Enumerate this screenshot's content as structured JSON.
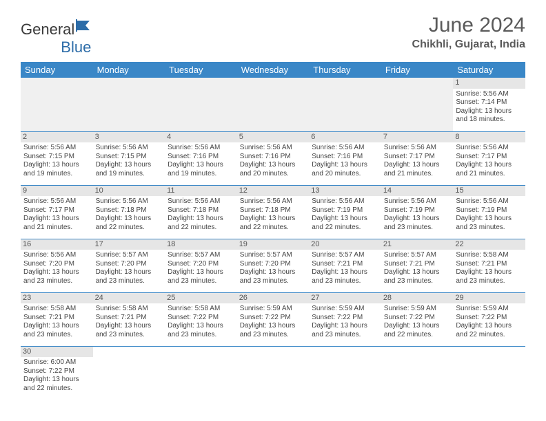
{
  "logo": {
    "text1": "General",
    "text2": "Blue"
  },
  "title": "June 2024",
  "location": "Chikhli, Gujarat, India",
  "colors": {
    "header_bg": "#3a87c7",
    "header_text": "#ffffff",
    "daynum_bg": "#e6e6e6",
    "empty_bg": "#f0f0f0",
    "border": "#3a87c7",
    "title_color": "#5a5a5a"
  },
  "day_headers": [
    "Sunday",
    "Monday",
    "Tuesday",
    "Wednesday",
    "Thursday",
    "Friday",
    "Saturday"
  ],
  "weeks": [
    [
      null,
      null,
      null,
      null,
      null,
      null,
      {
        "n": "1",
        "sr": "Sunrise: 5:56 AM",
        "ss": "Sunset: 7:14 PM",
        "d1": "Daylight: 13 hours",
        "d2": "and 18 minutes."
      }
    ],
    [
      {
        "n": "2",
        "sr": "Sunrise: 5:56 AM",
        "ss": "Sunset: 7:15 PM",
        "d1": "Daylight: 13 hours",
        "d2": "and 19 minutes."
      },
      {
        "n": "3",
        "sr": "Sunrise: 5:56 AM",
        "ss": "Sunset: 7:15 PM",
        "d1": "Daylight: 13 hours",
        "d2": "and 19 minutes."
      },
      {
        "n": "4",
        "sr": "Sunrise: 5:56 AM",
        "ss": "Sunset: 7:16 PM",
        "d1": "Daylight: 13 hours",
        "d2": "and 19 minutes."
      },
      {
        "n": "5",
        "sr": "Sunrise: 5:56 AM",
        "ss": "Sunset: 7:16 PM",
        "d1": "Daylight: 13 hours",
        "d2": "and 20 minutes."
      },
      {
        "n": "6",
        "sr": "Sunrise: 5:56 AM",
        "ss": "Sunset: 7:16 PM",
        "d1": "Daylight: 13 hours",
        "d2": "and 20 minutes."
      },
      {
        "n": "7",
        "sr": "Sunrise: 5:56 AM",
        "ss": "Sunset: 7:17 PM",
        "d1": "Daylight: 13 hours",
        "d2": "and 21 minutes."
      },
      {
        "n": "8",
        "sr": "Sunrise: 5:56 AM",
        "ss": "Sunset: 7:17 PM",
        "d1": "Daylight: 13 hours",
        "d2": "and 21 minutes."
      }
    ],
    [
      {
        "n": "9",
        "sr": "Sunrise: 5:56 AM",
        "ss": "Sunset: 7:17 PM",
        "d1": "Daylight: 13 hours",
        "d2": "and 21 minutes."
      },
      {
        "n": "10",
        "sr": "Sunrise: 5:56 AM",
        "ss": "Sunset: 7:18 PM",
        "d1": "Daylight: 13 hours",
        "d2": "and 22 minutes."
      },
      {
        "n": "11",
        "sr": "Sunrise: 5:56 AM",
        "ss": "Sunset: 7:18 PM",
        "d1": "Daylight: 13 hours",
        "d2": "and 22 minutes."
      },
      {
        "n": "12",
        "sr": "Sunrise: 5:56 AM",
        "ss": "Sunset: 7:18 PM",
        "d1": "Daylight: 13 hours",
        "d2": "and 22 minutes."
      },
      {
        "n": "13",
        "sr": "Sunrise: 5:56 AM",
        "ss": "Sunset: 7:19 PM",
        "d1": "Daylight: 13 hours",
        "d2": "and 22 minutes."
      },
      {
        "n": "14",
        "sr": "Sunrise: 5:56 AM",
        "ss": "Sunset: 7:19 PM",
        "d1": "Daylight: 13 hours",
        "d2": "and 23 minutes."
      },
      {
        "n": "15",
        "sr": "Sunrise: 5:56 AM",
        "ss": "Sunset: 7:19 PM",
        "d1": "Daylight: 13 hours",
        "d2": "and 23 minutes."
      }
    ],
    [
      {
        "n": "16",
        "sr": "Sunrise: 5:56 AM",
        "ss": "Sunset: 7:20 PM",
        "d1": "Daylight: 13 hours",
        "d2": "and 23 minutes."
      },
      {
        "n": "17",
        "sr": "Sunrise: 5:57 AM",
        "ss": "Sunset: 7:20 PM",
        "d1": "Daylight: 13 hours",
        "d2": "and 23 minutes."
      },
      {
        "n": "18",
        "sr": "Sunrise: 5:57 AM",
        "ss": "Sunset: 7:20 PM",
        "d1": "Daylight: 13 hours",
        "d2": "and 23 minutes."
      },
      {
        "n": "19",
        "sr": "Sunrise: 5:57 AM",
        "ss": "Sunset: 7:20 PM",
        "d1": "Daylight: 13 hours",
        "d2": "and 23 minutes."
      },
      {
        "n": "20",
        "sr": "Sunrise: 5:57 AM",
        "ss": "Sunset: 7:21 PM",
        "d1": "Daylight: 13 hours",
        "d2": "and 23 minutes."
      },
      {
        "n": "21",
        "sr": "Sunrise: 5:57 AM",
        "ss": "Sunset: 7:21 PM",
        "d1": "Daylight: 13 hours",
        "d2": "and 23 minutes."
      },
      {
        "n": "22",
        "sr": "Sunrise: 5:58 AM",
        "ss": "Sunset: 7:21 PM",
        "d1": "Daylight: 13 hours",
        "d2": "and 23 minutes."
      }
    ],
    [
      {
        "n": "23",
        "sr": "Sunrise: 5:58 AM",
        "ss": "Sunset: 7:21 PM",
        "d1": "Daylight: 13 hours",
        "d2": "and 23 minutes."
      },
      {
        "n": "24",
        "sr": "Sunrise: 5:58 AM",
        "ss": "Sunset: 7:21 PM",
        "d1": "Daylight: 13 hours",
        "d2": "and 23 minutes."
      },
      {
        "n": "25",
        "sr": "Sunrise: 5:58 AM",
        "ss": "Sunset: 7:22 PM",
        "d1": "Daylight: 13 hours",
        "d2": "and 23 minutes."
      },
      {
        "n": "26",
        "sr": "Sunrise: 5:59 AM",
        "ss": "Sunset: 7:22 PM",
        "d1": "Daylight: 13 hours",
        "d2": "and 23 minutes."
      },
      {
        "n": "27",
        "sr": "Sunrise: 5:59 AM",
        "ss": "Sunset: 7:22 PM",
        "d1": "Daylight: 13 hours",
        "d2": "and 23 minutes."
      },
      {
        "n": "28",
        "sr": "Sunrise: 5:59 AM",
        "ss": "Sunset: 7:22 PM",
        "d1": "Daylight: 13 hours",
        "d2": "and 22 minutes."
      },
      {
        "n": "29",
        "sr": "Sunrise: 5:59 AM",
        "ss": "Sunset: 7:22 PM",
        "d1": "Daylight: 13 hours",
        "d2": "and 22 minutes."
      }
    ],
    [
      {
        "n": "30",
        "sr": "Sunrise: 6:00 AM",
        "ss": "Sunset: 7:22 PM",
        "d1": "Daylight: 13 hours",
        "d2": "and 22 minutes."
      },
      null,
      null,
      null,
      null,
      null,
      null
    ]
  ]
}
